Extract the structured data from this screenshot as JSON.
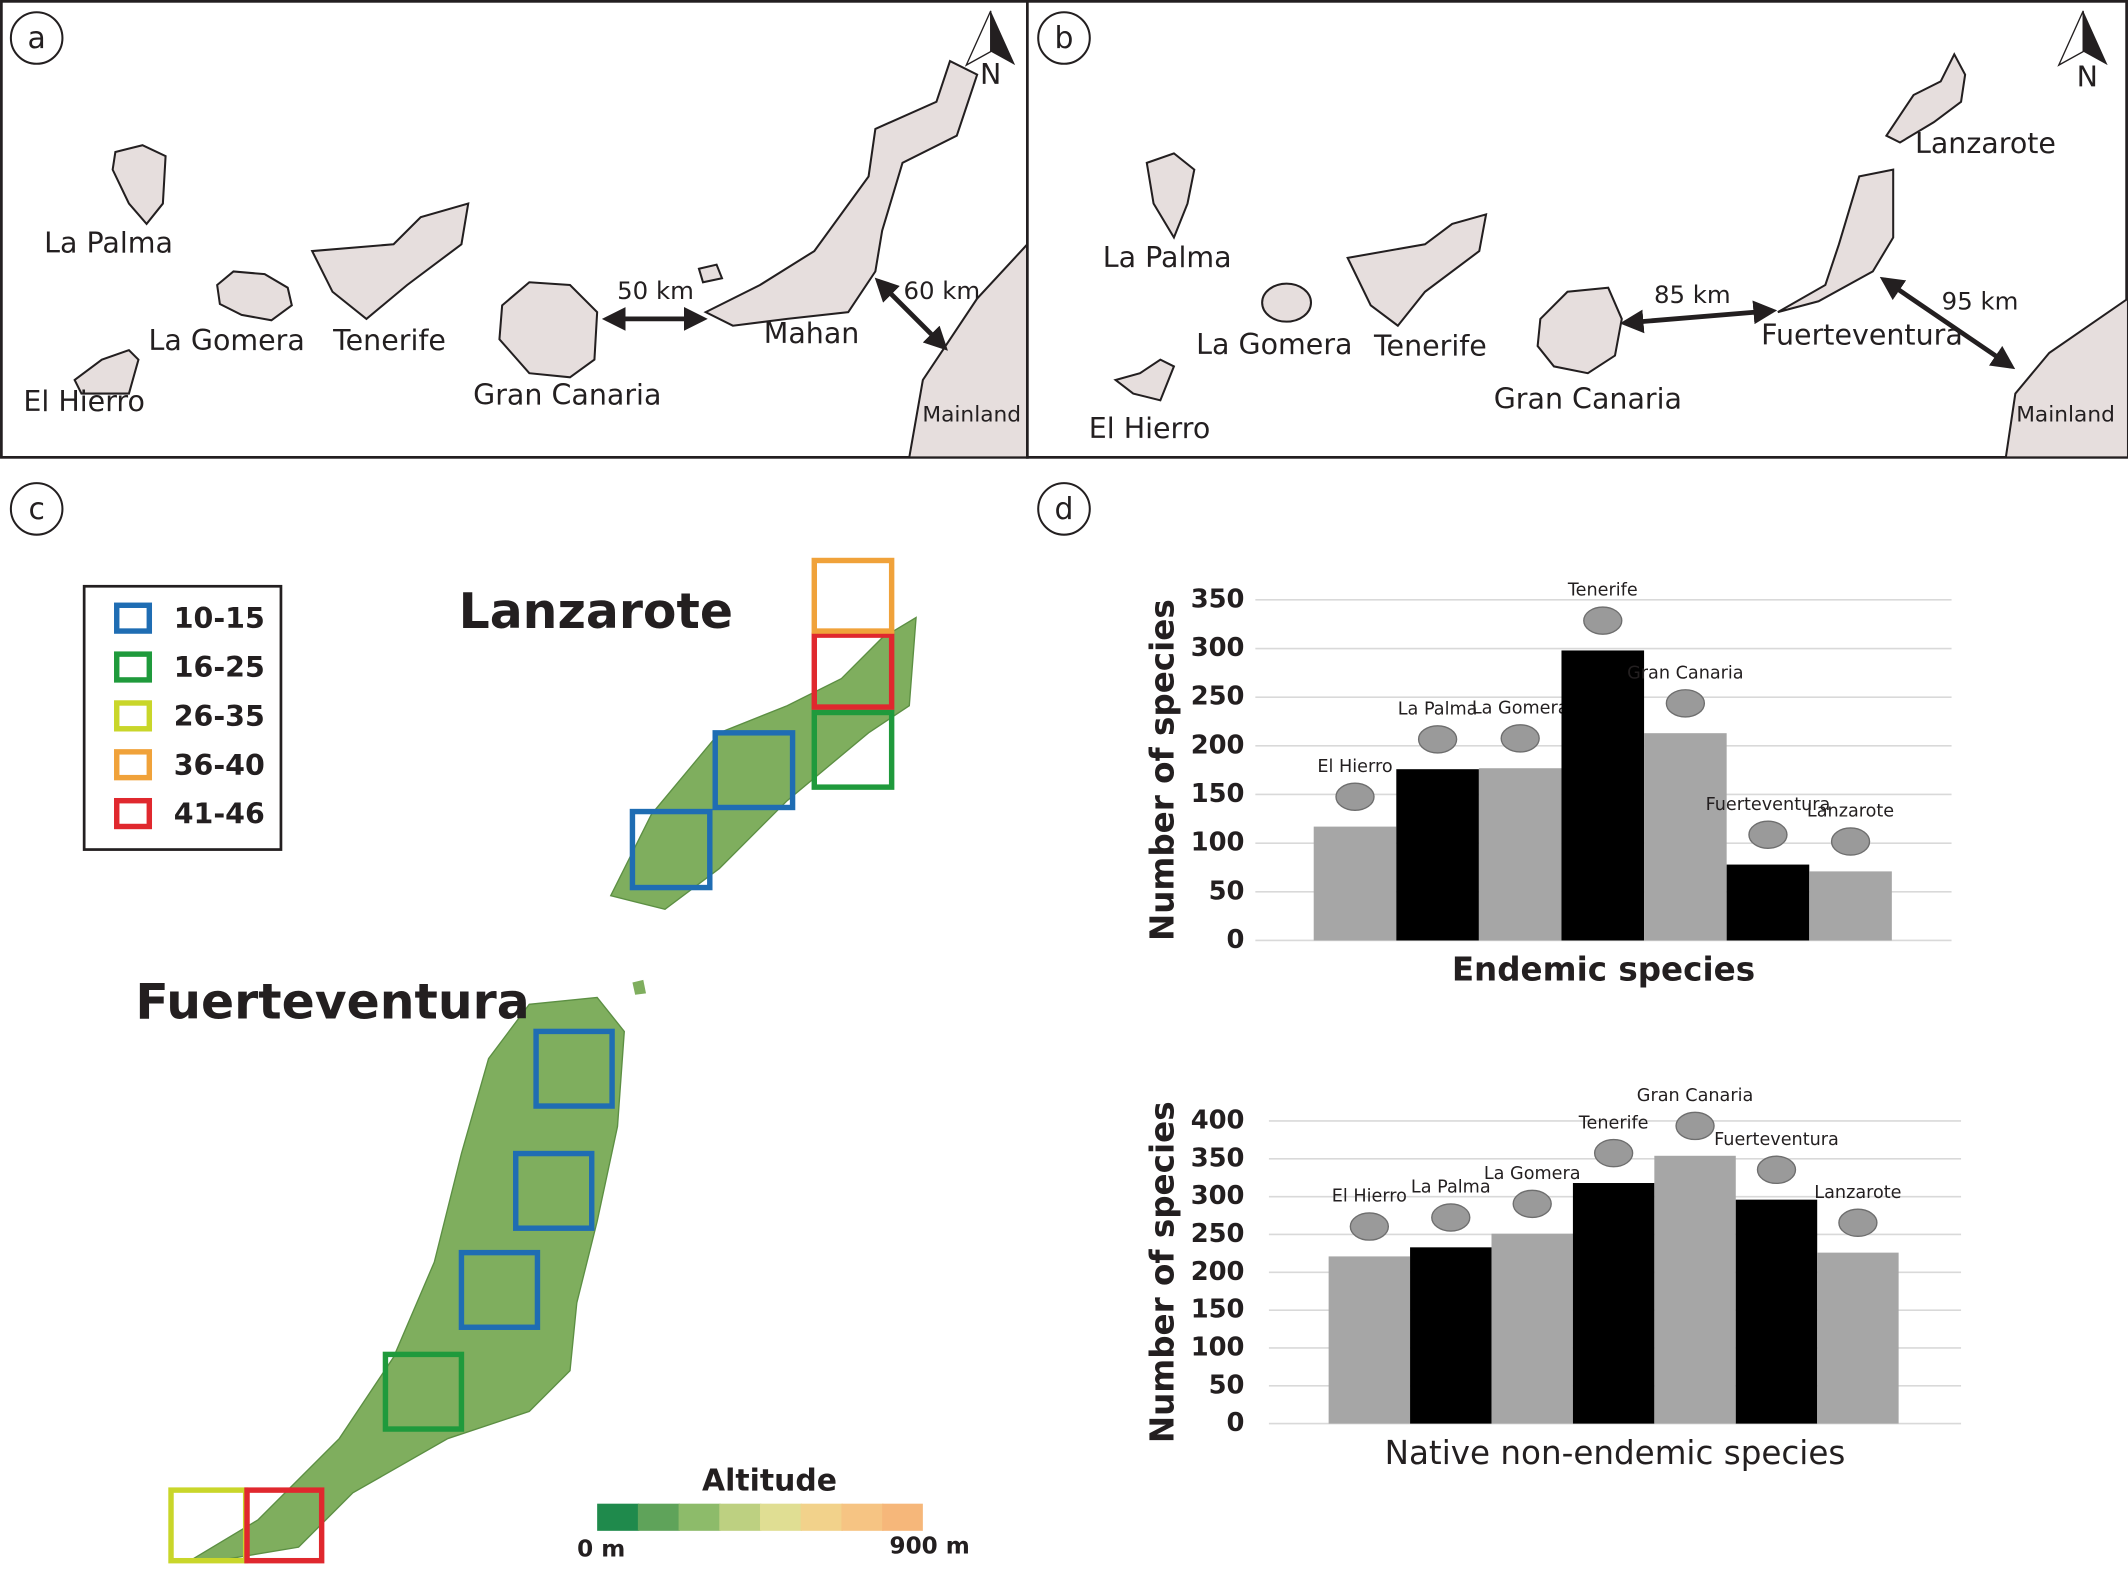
{
  "map_a": {
    "label": "a",
    "north": "N",
    "la_palma": "La Palma",
    "la_gomera": "La Gomera",
    "tenerife": "Tenerife",
    "el_hierro": "El Hierro",
    "gran_canaria": "Gran Canaria",
    "distance_1": "50 km",
    "mahan": "Mahan",
    "distance_2": "60 km",
    "mainland": "Mainland"
  },
  "map_b": {
    "label": "b",
    "north": "N",
    "la_palma": "La Palma",
    "la_gomera": "La Gomera",
    "tenerife": "Tenerife",
    "el_hierro": "El Hierro",
    "gran_canaria": "Gran Canaria",
    "distance_1": "85 km",
    "fuerteventura": "Fuerteventura",
    "distance_2": "95 km",
    "lanzarote": "Lanzarote",
    "mainland": "Mainland"
  },
  "map_c": {
    "label": "c",
    "lanzarote": "Lanzarote",
    "fuerteventura": "Fuerteventura",
    "legend": [
      {
        "label": "10-15",
        "color": "#1f6db3"
      },
      {
        "label": "16-25",
        "color": "#1f9a3c"
      },
      {
        "label": "26-35",
        "color": "#c9d62a"
      },
      {
        "label": "36-40",
        "color": "#f0a23a"
      },
      {
        "label": "41-46",
        "color": "#e0282e"
      }
    ],
    "altitude_title": "Altitude",
    "altitude_min": "0 m",
    "altitude_max": "900 m"
  },
  "panel_d": {
    "label": "d"
  },
  "chart_data": [
    {
      "type": "bar",
      "xlabel": "Endemic species",
      "ylabel": "Number of species",
      "categories": [
        "El Hierro",
        "La Palma",
        "La Gomera",
        "Tenerife",
        "Gran Canaria",
        "Fuerteventura",
        "Lanzarote"
      ],
      "values": [
        117,
        176,
        177,
        298,
        213,
        78,
        71
      ],
      "colors": [
        "#a6a6a6",
        "#000000",
        "#a6a6a6",
        "#000000",
        "#a6a6a6",
        "#000000",
        "#a6a6a6"
      ],
      "ylim": [
        0,
        350
      ],
      "yticks": [
        0,
        50,
        100,
        150,
        200,
        250,
        300,
        350
      ],
      "grid": true
    },
    {
      "type": "bar",
      "xlabel": "Native non-endemic species",
      "ylabel": "Number of species",
      "categories": [
        "El Hierro",
        "La Palma",
        "La Gomera",
        "Tenerife",
        "Gran Canaria",
        "Fuerteventura",
        "Lanzarote"
      ],
      "values": [
        221,
        233,
        251,
        318,
        354,
        296,
        226
      ],
      "colors": [
        "#a6a6a6",
        "#000000",
        "#a6a6a6",
        "#000000",
        "#a6a6a6",
        "#000000",
        "#a6a6a6"
      ],
      "ylim": [
        0,
        400
      ],
      "yticks": [
        0,
        50,
        100,
        150,
        200,
        250,
        300,
        350,
        400
      ],
      "grid": true
    }
  ]
}
